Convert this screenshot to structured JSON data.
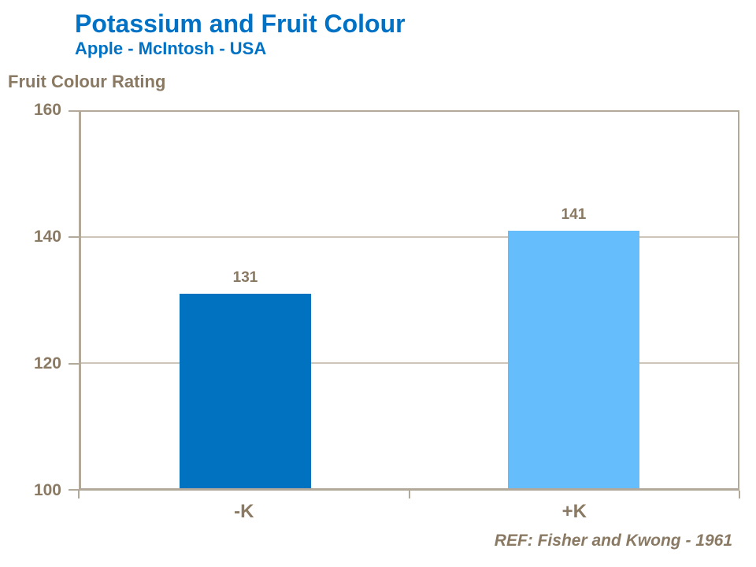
{
  "chart_data": {
    "type": "bar",
    "title": "Potassium and Fruit Colour",
    "subtitle": "Apple - McIntosh - USA",
    "ylabel": "Fruit Colour Rating",
    "xlabel": "",
    "categories": [
      "-K",
      "+K"
    ],
    "values": [
      131,
      141
    ],
    "bar_colors": [
      "#0072C0",
      "#66BDFC"
    ],
    "value_labels": [
      "131",
      "141"
    ],
    "ylim": [
      100,
      160
    ],
    "yticks": [
      100,
      120,
      140,
      160
    ],
    "grid": "horizontal gridlines at interior yticks",
    "legend": "none",
    "footnote": "REF: Fisher and Kwong - 1961"
  },
  "colors": {
    "title_blue": "#0072C6",
    "text_brown": "#8A7963",
    "axis_line": "#B3A99B",
    "gridline": "#CDC5B7",
    "bar_dark_blue": "#0072C0",
    "bar_light_blue": "#66BDFC",
    "background": "#FFFFFF"
  }
}
